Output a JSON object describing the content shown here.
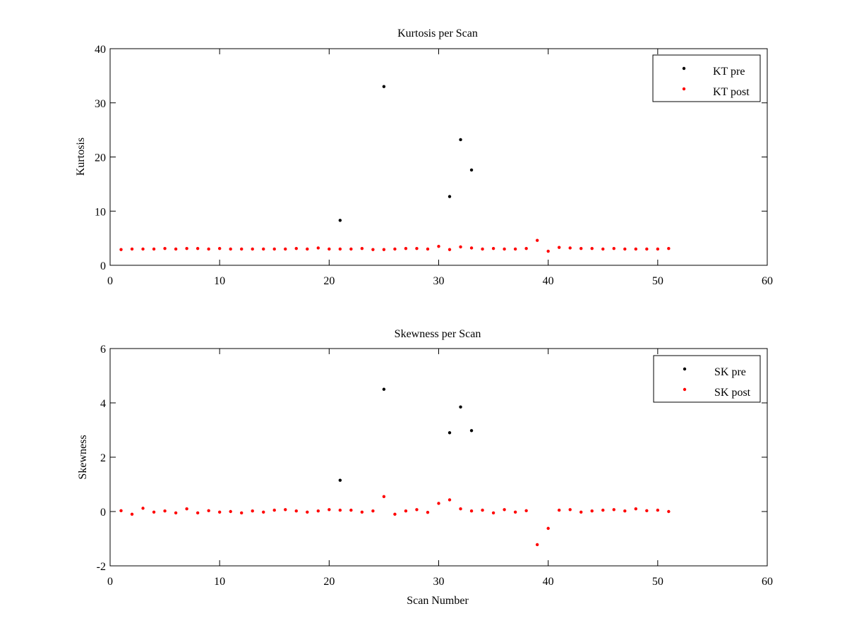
{
  "chart_data": [
    {
      "type": "scatter",
      "title": "Kurtosis per Scan",
      "xlabel": "",
      "ylabel": "Kurtosis",
      "xlim": [
        0,
        60
      ],
      "ylim": [
        0,
        40
      ],
      "xticks": [
        0,
        10,
        20,
        30,
        40,
        50,
        60
      ],
      "yticks": [
        0,
        10,
        20,
        30,
        40
      ],
      "xtick_labels": [
        "0",
        "10",
        "20",
        "30",
        "40",
        "50",
        "60"
      ],
      "ytick_labels": [
        "0",
        "10",
        "20",
        "30",
        "40"
      ],
      "legend_position": "top-right",
      "series": [
        {
          "name": "KT pre",
          "color": "#000000",
          "x": [
            21,
            25,
            31,
            32,
            33
          ],
          "y": [
            8.3,
            33.0,
            12.7,
            23.2,
            17.6
          ]
        },
        {
          "name": "KT post",
          "color": "#ff0000",
          "x": [
            1,
            2,
            3,
            4,
            5,
            6,
            7,
            8,
            9,
            10,
            11,
            12,
            13,
            14,
            15,
            16,
            17,
            18,
            19,
            20,
            21,
            22,
            23,
            24,
            25,
            26,
            27,
            28,
            29,
            30,
            31,
            32,
            33,
            34,
            35,
            36,
            37,
            38,
            39,
            40,
            41,
            42,
            43,
            44,
            45,
            46,
            47,
            48,
            49,
            50,
            51
          ],
          "y": [
            2.9,
            3.0,
            3.0,
            3.0,
            3.1,
            3.0,
            3.1,
            3.1,
            3.0,
            3.1,
            3.0,
            3.0,
            3.0,
            3.0,
            3.0,
            3.0,
            3.1,
            3.0,
            3.2,
            3.0,
            3.0,
            3.0,
            3.1,
            2.9,
            2.9,
            3.0,
            3.1,
            3.1,
            3.0,
            3.5,
            2.9,
            3.4,
            3.2,
            3.0,
            3.1,
            3.0,
            3.0,
            3.1,
            4.6,
            2.6,
            3.3,
            3.2,
            3.1,
            3.1,
            3.0,
            3.1,
            3.0,
            3.0,
            3.0,
            3.0,
            3.1
          ]
        }
      ]
    },
    {
      "type": "scatter",
      "title": "Skewness per Scan",
      "xlabel": "Scan Number",
      "ylabel": "Skewness",
      "xlim": [
        0,
        60
      ],
      "ylim": [
        -2,
        6
      ],
      "xticks": [
        0,
        10,
        20,
        30,
        40,
        50,
        60
      ],
      "yticks": [
        -2,
        0,
        2,
        4,
        6
      ],
      "xtick_labels": [
        "0",
        "10",
        "20",
        "30",
        "40",
        "50",
        "60"
      ],
      "ytick_labels": [
        "-2",
        "0",
        "2",
        "4",
        "6"
      ],
      "legend_position": "top-right",
      "series": [
        {
          "name": "SK pre",
          "color": "#000000",
          "x": [
            21,
            25,
            31,
            32,
            33
          ],
          "y": [
            1.15,
            4.5,
            2.9,
            3.85,
            2.98
          ]
        },
        {
          "name": "SK post",
          "color": "#ff0000",
          "x": [
            1,
            2,
            3,
            4,
            5,
            6,
            7,
            8,
            9,
            10,
            11,
            12,
            13,
            14,
            15,
            16,
            17,
            18,
            19,
            20,
            21,
            22,
            23,
            24,
            25,
            26,
            27,
            28,
            29,
            30,
            31,
            32,
            33,
            34,
            35,
            36,
            37,
            38,
            39,
            40,
            41,
            42,
            43,
            44,
            45,
            46,
            47,
            48,
            49,
            50,
            51
          ],
          "y": [
            0.03,
            -0.1,
            0.12,
            -0.02,
            0.02,
            -0.05,
            0.1,
            -0.05,
            0.03,
            -0.02,
            0.0,
            -0.05,
            0.02,
            -0.02,
            0.05,
            0.07,
            0.02,
            -0.02,
            0.02,
            0.07,
            0.05,
            0.05,
            -0.02,
            0.02,
            0.55,
            -0.1,
            0.02,
            0.07,
            -0.03,
            0.3,
            0.43,
            0.1,
            0.02,
            0.05,
            -0.05,
            0.07,
            -0.02,
            0.03,
            -1.22,
            -0.62,
            0.05,
            0.07,
            -0.02,
            0.02,
            0.05,
            0.07,
            0.02,
            0.1,
            0.03,
            0.05,
            0.0
          ]
        }
      ]
    }
  ]
}
